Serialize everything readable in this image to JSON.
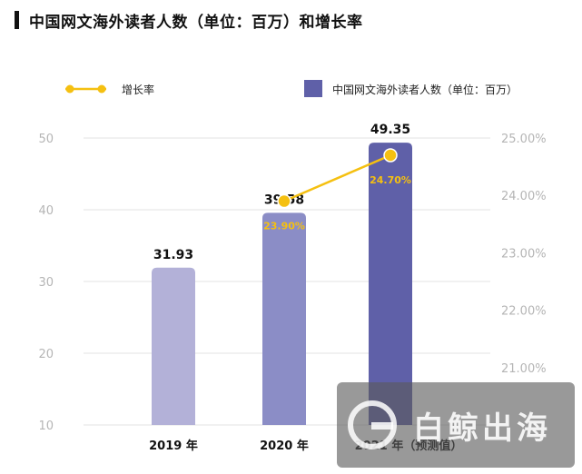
{
  "title": "中国网文海外读者人数（单位：百万）和增长率",
  "watermark": {
    "text": "白鲸出海"
  },
  "colors": {
    "bar_2019": "#b3b1d8",
    "bar_2020": "#8b8dc6",
    "bar_2021": "#5f60a8",
    "line": "#f5c011",
    "label_line": "#f5c011",
    "grid": "#e3e3e3",
    "tick": "#b5b5b5"
  },
  "chart_data": {
    "type": "bar",
    "categories": [
      "2019 年",
      "2020 年",
      "2021 年（预测值）"
    ],
    "series": [
      {
        "name": "中国网文海外读者人数（单位：百万）",
        "type": "bar",
        "axis": "left",
        "values": [
          31.93,
          39.58,
          49.35
        ],
        "labels": [
          "31.93",
          "39.58",
          "49.35"
        ]
      },
      {
        "name": "增长率",
        "type": "line",
        "axis": "right",
        "values": [
          null,
          23.9,
          24.7
        ],
        "labels": [
          "",
          "23.90%",
          "24.70%"
        ]
      }
    ],
    "y_left": {
      "ylim": [
        10,
        50
      ],
      "ticks": [
        "10",
        "20",
        "30",
        "40",
        "50"
      ]
    },
    "y_right": {
      "ylim": [
        20.0,
        25.0
      ],
      "ticks": [
        "21.00%",
        "22.00%",
        "23.00%",
        "24.00%",
        "25.00%"
      ]
    },
    "grid": true,
    "legend": "top"
  }
}
